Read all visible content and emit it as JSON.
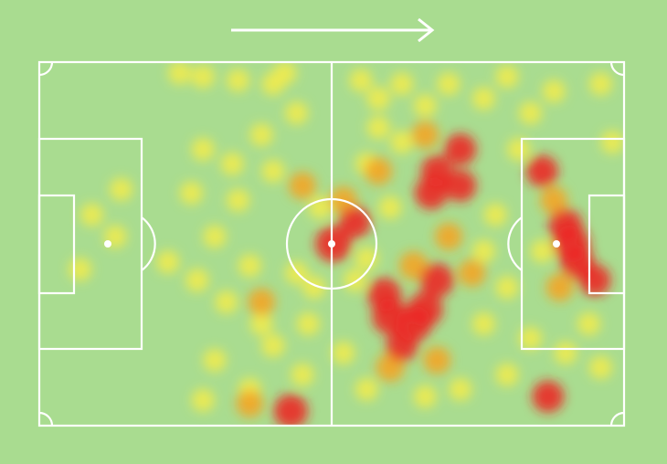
{
  "chart_data": {
    "type": "heatmap",
    "xlim": [
      0,
      100
    ],
    "ylim": [
      0,
      100
    ],
    "colorscale": [
      "#f3ec4a",
      "#f7a21e",
      "#ee2222"
    ],
    "x": [
      24,
      28,
      34,
      40,
      42,
      38,
      44,
      40,
      34,
      30,
      27,
      32,
      38,
      40,
      30,
      36,
      28,
      45,
      22,
      26,
      47,
      44,
      9,
      13,
      7,
      14,
      28,
      55,
      58,
      62,
      66,
      70,
      76,
      80,
      84,
      88,
      96,
      98,
      82,
      78,
      76,
      80,
      76,
      84,
      80,
      72,
      66,
      56,
      52,
      56,
      60,
      56,
      62,
      58,
      94,
      96,
      90,
      86,
      54,
      48,
      46,
      36,
      33,
      60,
      70,
      64,
      52,
      58,
      66,
      74,
      88,
      89,
      68,
      36,
      45,
      38,
      50.3,
      91,
      90,
      92,
      60,
      64,
      66,
      59,
      68,
      62,
      67,
      68,
      72,
      72,
      43,
      54,
      86,
      95,
      87
    ],
    "y": [
      3,
      4,
      5,
      6,
      3,
      20,
      14,
      30,
      38,
      48,
      60,
      66,
      72,
      78,
      82,
      90,
      93,
      86,
      55,
      36,
      62,
      58,
      42,
      48,
      57,
      35,
      24,
      5,
      10,
      6,
      12,
      6,
      10,
      4,
      14,
      8,
      6,
      22,
      24,
      42,
      52,
      62,
      72,
      76,
      86,
      90,
      92,
      90,
      80,
      54,
      40,
      28,
      22,
      18,
      72,
      84,
      80,
      52,
      60,
      40,
      72,
      56,
      28,
      84,
      48,
      56,
      38,
      30,
      20,
      58,
      38,
      62,
      82,
      94,
      34,
      66,
      50,
      50,
      45,
      55,
      70,
      72,
      68,
      64,
      60,
      78,
      36,
      30,
      24,
      34,
      96,
      44,
      30,
      60,
      92
    ],
    "values": [
      0.3,
      0.32,
      0.3,
      0.3,
      0.32,
      0.3,
      0.3,
      0.3,
      0.3,
      0.3,
      0.32,
      0.3,
      0.3,
      0.32,
      0.3,
      0.3,
      0.3,
      0.3,
      0.3,
      0.3,
      0.3,
      0.3,
      0.3,
      0.3,
      0.3,
      0.3,
      0.3,
      0.3,
      0.32,
      0.3,
      0.3,
      0.3,
      0.3,
      0.3,
      0.3,
      0.3,
      0.3,
      0.3,
      0.3,
      0.3,
      0.3,
      0.3,
      0.3,
      0.3,
      0.3,
      0.3,
      0.3,
      0.3,
      0.3,
      0.3,
      0.3,
      0.3,
      0.3,
      0.3,
      0.3,
      0.3,
      0.3,
      0.3,
      0.3,
      0.3,
      0.3,
      0.3,
      0.3,
      0.55,
      0.5,
      0.55,
      0.5,
      0.5,
      0.5,
      0.5,
      0.5,
      0.5,
      0.5,
      0.5,
      0.5,
      0.5,
      0.9,
      0.95,
      0.8,
      0.8,
      0.9,
      0.9,
      0.85,
      0.8,
      0.8,
      0.7,
      0.75,
      0.7,
      0.7,
      0.7,
      0.8,
      0.7,
      0.7,
      0.7,
      0.7
    ]
  }
}
